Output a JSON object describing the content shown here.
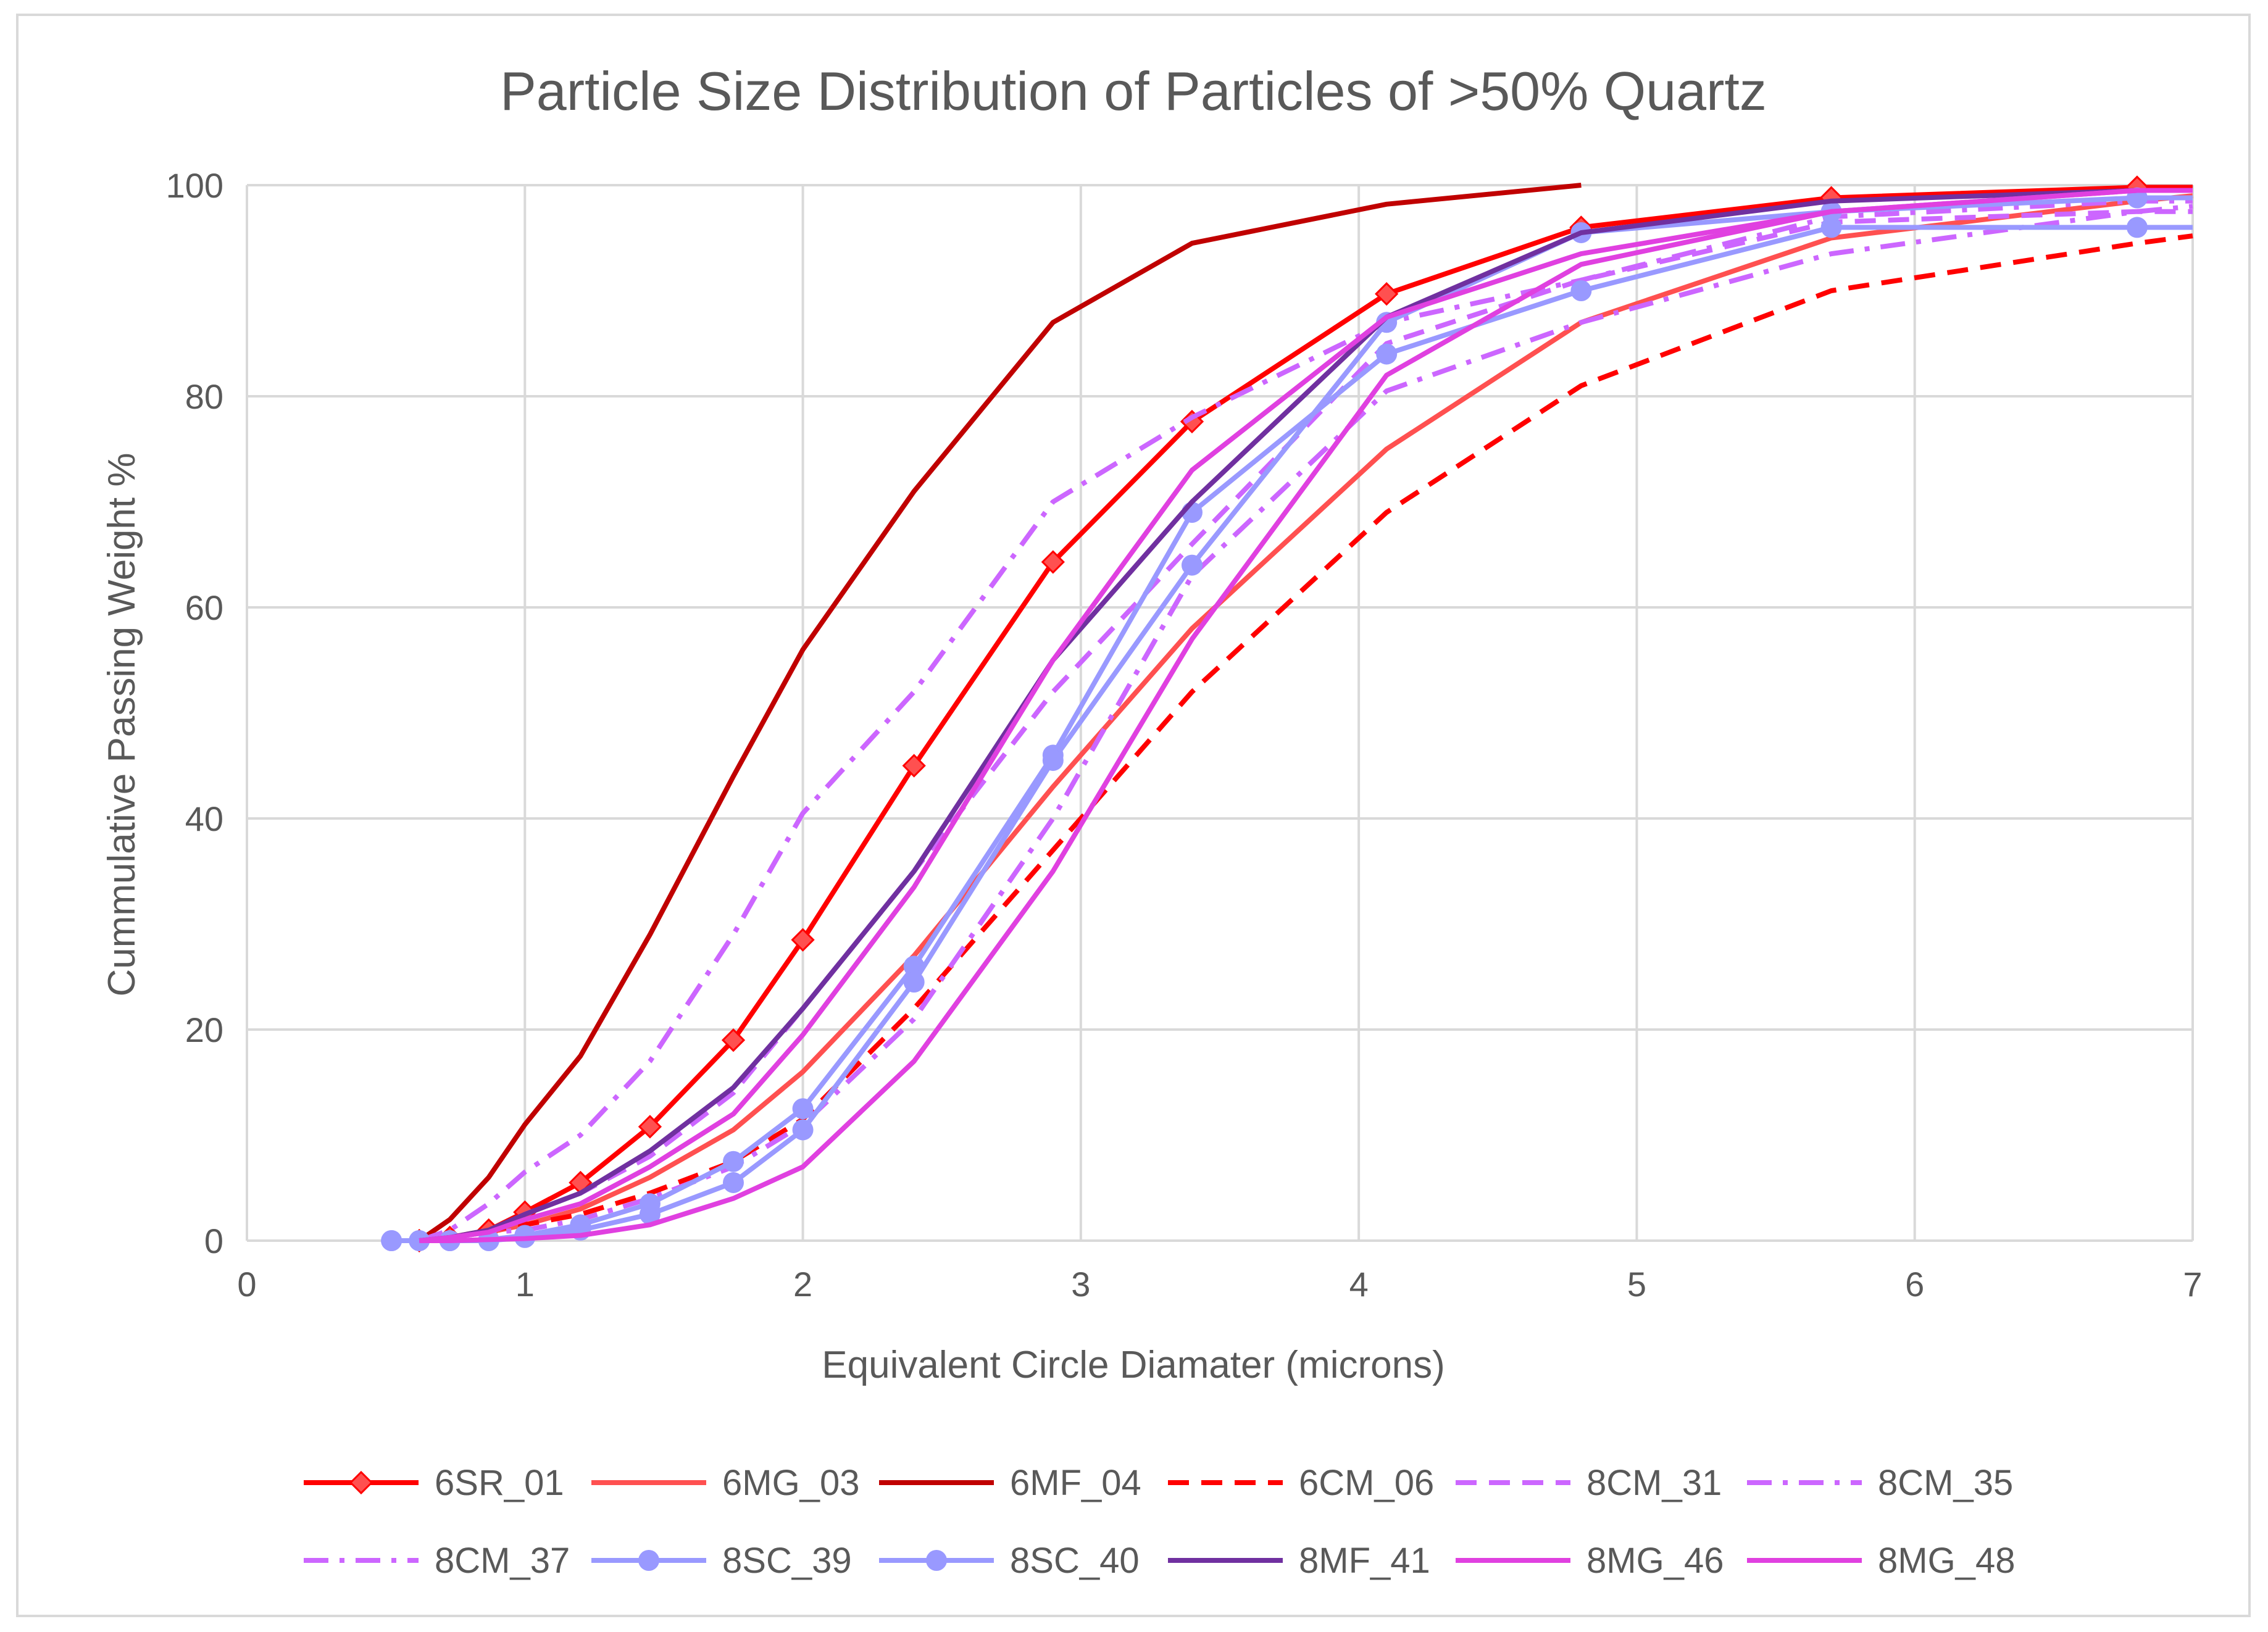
{
  "chart_data": {
    "type": "line",
    "title": "Particle Size Distribution of Particles of >50% Quartz",
    "xlabel": "Equivalent Circle Diamater (microns)",
    "ylabel": "Cummulative Passing Weight %",
    "xlim": [
      0,
      7
    ],
    "ylim": [
      0,
      100
    ],
    "xticks": [
      "0",
      "1",
      "2",
      "3",
      "4",
      "5",
      "6",
      "7"
    ],
    "yticks": [
      "0",
      "20",
      "40",
      "60",
      "80",
      "100"
    ],
    "grid": true,
    "legend_position": "bottom",
    "series": [
      {
        "name": "6SR_01",
        "color": "#ff0000",
        "dash": "solid",
        "marker": "diamond",
        "x": [
          0.62,
          0.73,
          0.87,
          1.0,
          1.2,
          1.45,
          1.75,
          2.0,
          2.4,
          2.9,
          3.4,
          4.1,
          4.8,
          5.7,
          6.8,
          7.0
        ],
        "y": [
          0,
          0.3,
          1.0,
          2.7,
          5.5,
          10.8,
          19.0,
          28.5,
          45.0,
          64.3,
          77.6,
          89.7,
          96.0,
          98.8,
          99.8,
          99.8
        ]
      },
      {
        "name": "6MG_03",
        "color": "#ff5050",
        "dash": "solid",
        "marker": "none",
        "x": [
          0.62,
          0.73,
          0.87,
          1.0,
          1.2,
          1.45,
          1.75,
          2.0,
          2.4,
          2.9,
          3.4,
          4.1,
          4.8,
          5.7,
          6.8,
          7.0
        ],
        "y": [
          0,
          0.3,
          0.8,
          1.5,
          3.0,
          6.0,
          10.5,
          16.0,
          27.0,
          43.0,
          58.0,
          75.0,
          87.0,
          95.0,
          98.5,
          99.0
        ]
      },
      {
        "name": "6MF_04",
        "color": "#c00000",
        "dash": "solid",
        "marker": "none",
        "x": [
          0.62,
          0.73,
          0.87,
          1.0,
          1.2,
          1.45,
          1.75,
          2.0,
          2.4,
          2.9,
          3.4,
          4.1,
          4.8
        ],
        "y": [
          0,
          2.0,
          6.0,
          11.0,
          17.5,
          29.0,
          44.0,
          56.0,
          71.0,
          87.0,
          94.5,
          98.2,
          100.0
        ]
      },
      {
        "name": "6CM_06",
        "color": "#ff0000",
        "dash": "dash",
        "marker": "none",
        "x": [
          0.62,
          0.73,
          0.87,
          1.0,
          1.2,
          1.45,
          1.75,
          2.0,
          2.4,
          2.9,
          3.4,
          4.1,
          4.8,
          5.7,
          6.8,
          7.0
        ],
        "y": [
          0,
          0.3,
          1.0,
          1.5,
          2.5,
          4.5,
          7.5,
          11.5,
          22.0,
          37.0,
          52.0,
          69.0,
          81.0,
          90.0,
          94.5,
          95.2
        ]
      },
      {
        "name": "8CM_31",
        "color": "#cc66ff",
        "dash": "dash",
        "marker": "none",
        "x": [
          0.62,
          0.73,
          0.87,
          1.0,
          1.2,
          1.45,
          1.75,
          2.0,
          2.4,
          2.9,
          3.4,
          4.1,
          4.8,
          5.7,
          6.8,
          7.0
        ],
        "y": [
          0,
          0.3,
          0.8,
          2.5,
          4.5,
          8.0,
          14.0,
          22.0,
          35.0,
          52.0,
          66.0,
          85.0,
          91.0,
          96.5,
          97.5,
          97.5
        ]
      },
      {
        "name": "8CM_35",
        "color": "#cc66ff",
        "dash": "dashdot",
        "marker": "none",
        "x": [
          0.62,
          0.73,
          0.87,
          1.0,
          1.2,
          1.45,
          1.75,
          2.0,
          2.4,
          2.9,
          3.4,
          4.1,
          4.8,
          5.7,
          6.8,
          7.0
        ],
        "y": [
          0,
          0.3,
          0.8,
          1.0,
          2.0,
          4.0,
          7.0,
          11.0,
          21.0,
          40.0,
          63.0,
          80.5,
          87.0,
          93.5,
          97.5,
          98.0
        ]
      },
      {
        "name": "8CM_37",
        "color": "#cc66ff",
        "dash": "dashdot",
        "marker": "none",
        "x": [
          0.62,
          0.73,
          0.87,
          1.0,
          1.2,
          1.45,
          1.75,
          2.0,
          2.4,
          2.9,
          3.4,
          4.1,
          4.8,
          5.7,
          6.8,
          7.0
        ],
        "y": [
          0,
          1.0,
          3.5,
          6.5,
          10.0,
          17.0,
          29.0,
          40.5,
          52.0,
          70.0,
          78.0,
          87.0,
          91.0,
          97.0,
          98.5,
          98.5
        ]
      },
      {
        "name": "8SC_39",
        "color": "#9999ff",
        "dash": "solid",
        "marker": "circle",
        "x": [
          0.52,
          0.62,
          0.73,
          0.87,
          1.0,
          1.2,
          1.45,
          1.75,
          2.0,
          2.4,
          2.9,
          3.4,
          4.1,
          4.8,
          5.7,
          6.8,
          7.0
        ],
        "y": [
          0,
          0,
          0,
          0.1,
          0.5,
          1.5,
          3.5,
          7.5,
          12.5,
          26.0,
          46.0,
          69.0,
          84.0,
          90.0,
          96.0,
          96.0,
          96.0
        ]
      },
      {
        "name": "8SC_40",
        "color": "#9999ff",
        "dash": "solid",
        "marker": "circle",
        "x": [
          0.52,
          0.62,
          0.73,
          0.87,
          1.0,
          1.2,
          1.45,
          1.75,
          2.0,
          2.4,
          2.9,
          3.4,
          4.1,
          4.8,
          5.7,
          6.8,
          7.0
        ],
        "y": [
          0,
          0,
          0,
          0,
          0.3,
          1.0,
          2.5,
          5.5,
          10.5,
          24.5,
          45.5,
          64.0,
          87.0,
          95.5,
          97.5,
          98.8,
          98.8
        ]
      },
      {
        "name": "8MF_41",
        "color": "#7030a0",
        "dash": "solid",
        "marker": "none",
        "x": [
          0.62,
          0.73,
          0.87,
          1.0,
          1.2,
          1.45,
          1.75,
          2.0,
          2.4,
          2.9,
          3.4,
          4.1,
          4.8,
          5.7,
          6.8,
          7.0
        ],
        "y": [
          0,
          0.3,
          1.0,
          2.5,
          4.5,
          8.5,
          14.5,
          22.0,
          35.0,
          55.0,
          70.0,
          87.5,
          95.5,
          98.5,
          99.5,
          99.5
        ]
      },
      {
        "name": "8MG_46",
        "color": "#e040e0",
        "dash": "solid",
        "marker": "none",
        "x": [
          0.62,
          0.73,
          0.87,
          1.0,
          1.2,
          1.45,
          1.75,
          2.0,
          2.4,
          2.9,
          3.4,
          4.1,
          4.8,
          5.7,
          6.8,
          7.0
        ],
        "y": [
          0,
          0.3,
          0.8,
          2.0,
          3.5,
          7.0,
          12.0,
          19.5,
          33.5,
          55.0,
          73.0,
          87.5,
          93.5,
          97.5,
          99.5,
          99.5
        ]
      },
      {
        "name": "8MG_48",
        "color": "#e040e0",
        "dash": "solid",
        "marker": "none",
        "x": [
          0.62,
          0.73,
          0.87,
          1.0,
          1.2,
          1.45,
          1.75,
          2.0,
          2.4,
          2.9,
          3.4,
          4.1,
          4.8,
          5.7,
          6.8,
          7.0
        ],
        "y": [
          0,
          0,
          0.1,
          0.2,
          0.5,
          1.5,
          4.0,
          7.0,
          17.0,
          35.0,
          57.0,
          82.0,
          92.5,
          97.5,
          99.5,
          99.5
        ]
      }
    ]
  }
}
